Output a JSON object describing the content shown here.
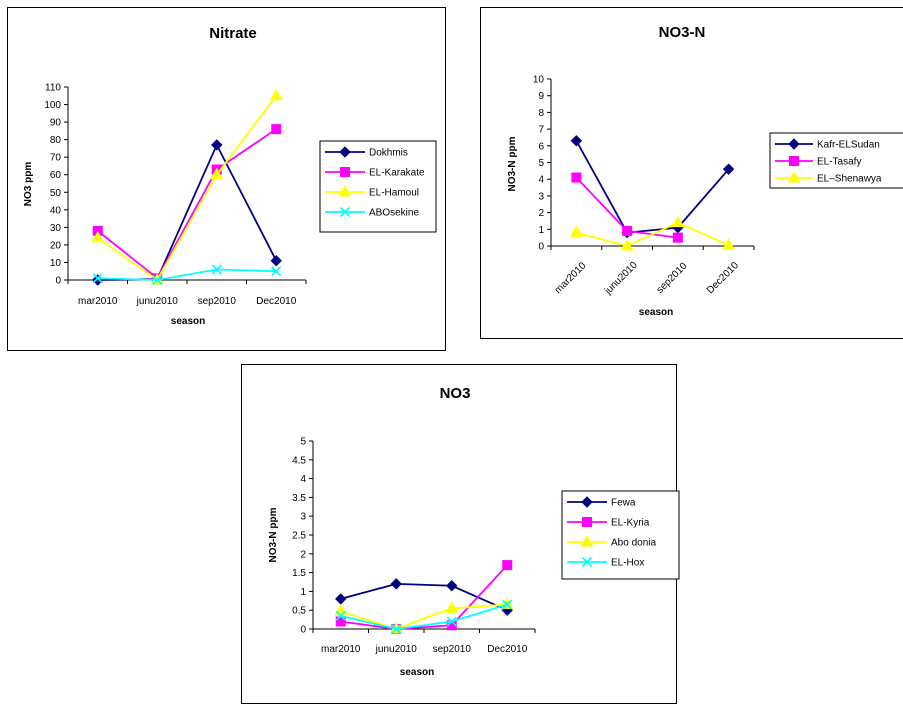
{
  "chart_data": [
    {
      "type": "line",
      "title": "Nitrate",
      "xlabel": "season",
      "ylabel": "NO3 ppm",
      "categories": [
        "mar2010",
        "junu2010",
        "sep2010",
        "Dec2010"
      ],
      "ylim": [
        0,
        110
      ],
      "yticks": [
        0,
        10,
        20,
        30,
        40,
        50,
        60,
        70,
        80,
        90,
        100,
        110
      ],
      "legend_position": "right",
      "series": [
        {
          "name": "Dokhmis",
          "color": "#000080",
          "marker": "diamond",
          "values": [
            0,
            0.5,
            77,
            11
          ]
        },
        {
          "name": "EL-Karakate",
          "color": "#ff00ff",
          "marker": "square",
          "values": [
            28,
            1,
            63,
            86
          ]
        },
        {
          "name": "EL-Hamoul",
          "color": "#ffff00",
          "marker": "triangle",
          "values": [
            24,
            0,
            60,
            105
          ]
        },
        {
          "name": "ABOsekine",
          "color": "#00ffff",
          "marker": "x",
          "values": [
            1,
            0,
            6,
            5
          ]
        }
      ]
    },
    {
      "type": "line",
      "title": "NO3-N",
      "xlabel": "season",
      "ylabel": "NO3-N ppm",
      "categories": [
        "mar2010",
        "junu2010",
        "sep2010",
        "Dec2010"
      ],
      "ylim": [
        0,
        10
      ],
      "yticks": [
        0,
        1,
        2,
        3,
        4,
        5,
        6,
        7,
        8,
        9,
        10
      ],
      "rotated_tick_labels": true,
      "legend_position": "right",
      "series": [
        {
          "name": "Kafr-ELSudan",
          "color": "#000080",
          "marker": "diamond",
          "values": [
            6.3,
            0.8,
            1.1,
            4.6
          ]
        },
        {
          "name": "EL-Tasafy",
          "color": "#ff00ff",
          "marker": "square",
          "values": [
            4.1,
            0.9,
            0.5,
            null
          ]
        },
        {
          "name": "EL–Shenawya",
          "color": "#ffff00",
          "marker": "triangle",
          "values": [
            0.8,
            0.0,
            1.4,
            0.05
          ]
        }
      ]
    },
    {
      "type": "line",
      "title": "NO3",
      "xlabel": "season",
      "ylabel": "NO3-N ppm",
      "categories": [
        "mar2010",
        "junu2010",
        "sep2010",
        "Dec2010"
      ],
      "ylim": [
        0,
        5
      ],
      "yticks": [
        "0",
        "0.5",
        "1",
        "1.5",
        "2",
        "2.5",
        "3",
        "3.5",
        "4",
        "4.5",
        "5"
      ],
      "legend_position": "right",
      "series": [
        {
          "name": "Fewa",
          "color": "#000080",
          "marker": "diamond",
          "values": [
            0.8,
            1.2,
            1.15,
            0.5
          ]
        },
        {
          "name": "EL-Kyria",
          "color": "#ff00ff",
          "marker": "square",
          "values": [
            0.2,
            0.0,
            0.1,
            1.7
          ]
        },
        {
          "name": "Abo donia",
          "color": "#ffff00",
          "marker": "triangle",
          "values": [
            0.47,
            0.0,
            0.55,
            0.65
          ]
        },
        {
          "name": "EL-Hox",
          "color": "#00ffff",
          "marker": "x",
          "values": [
            0.35,
            0.0,
            0.2,
            0.65
          ]
        }
      ]
    }
  ]
}
